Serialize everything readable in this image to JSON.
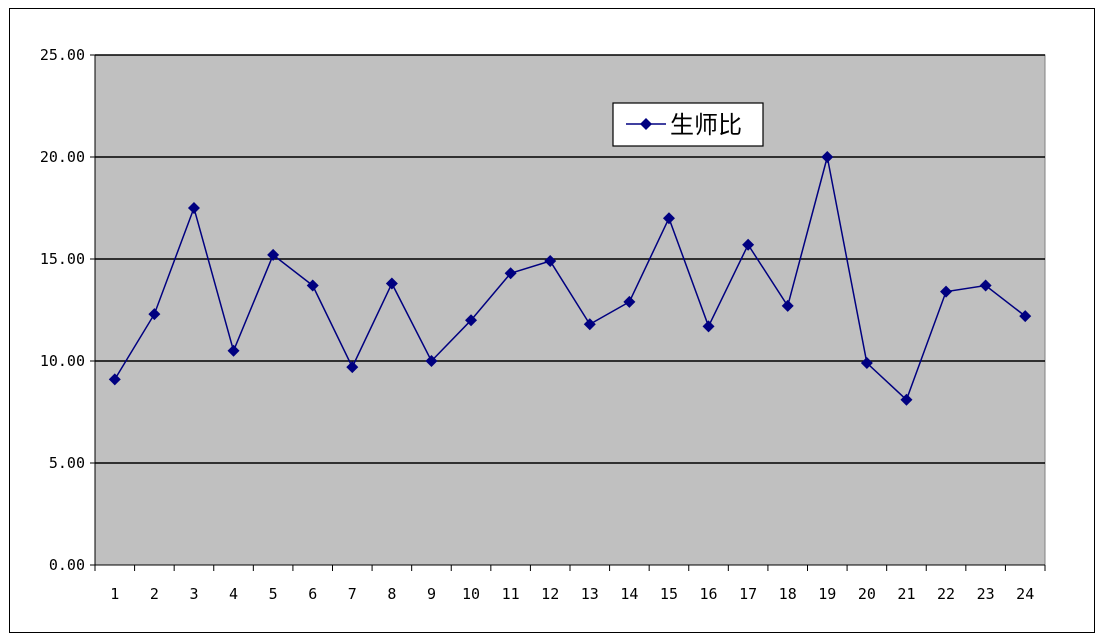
{
  "chart_data": {
    "type": "line",
    "categories": [
      "1",
      "2",
      "3",
      "4",
      "5",
      "6",
      "7",
      "8",
      "9",
      "10",
      "11",
      "12",
      "13",
      "14",
      "15",
      "16",
      "17",
      "18",
      "19",
      "20",
      "21",
      "22",
      "23",
      "24"
    ],
    "series": [
      {
        "name": "生师比",
        "color": "#000080",
        "marker": "diamond",
        "values": [
          9.1,
          12.3,
          17.5,
          10.5,
          15.2,
          13.7,
          9.7,
          13.8,
          10.0,
          12.0,
          14.3,
          14.9,
          11.8,
          12.9,
          17.0,
          11.7,
          15.7,
          12.7,
          20.0,
          9.9,
          8.1,
          13.4,
          13.7,
          12.2
        ]
      }
    ],
    "yticks": [
      "0.00",
      "5.00",
      "10.00",
      "15.00",
      "20.00",
      "25.00"
    ],
    "ylim": [
      0,
      25
    ],
    "grid": true,
    "legend_position": "top-right",
    "plot_background": "#c0c0c0"
  }
}
